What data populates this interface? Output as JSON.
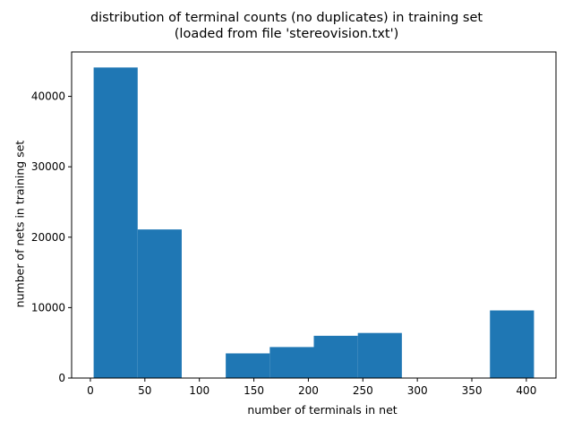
{
  "chart_data": {
    "type": "bar",
    "title_lines": [
      "distribution of terminal counts (no duplicates) in training set",
      "(loaded from file 'stereovision.txt')"
    ],
    "xlabel": "number of terminals in net",
    "ylabel": "number of nets in training set",
    "bins": [
      {
        "x0": 3,
        "x1": 43.4,
        "value": 44100
      },
      {
        "x0": 43.4,
        "x1": 83.8,
        "value": 21100
      },
      {
        "x0": 83.8,
        "x1": 124.2,
        "value": 0
      },
      {
        "x0": 124.2,
        "x1": 164.6,
        "value": 3500
      },
      {
        "x0": 164.6,
        "x1": 205.0,
        "value": 4400
      },
      {
        "x0": 205.0,
        "x1": 245.4,
        "value": 6000
      },
      {
        "x0": 245.4,
        "x1": 285.8,
        "value": 6400
      },
      {
        "x0": 285.8,
        "x1": 326.2,
        "value": 0
      },
      {
        "x0": 326.2,
        "x1": 366.6,
        "value": 0
      },
      {
        "x0": 366.6,
        "x1": 407.0,
        "value": 9600
      }
    ],
    "xticks": [
      0,
      50,
      100,
      150,
      200,
      250,
      300,
      350,
      400
    ],
    "yticks": [
      0,
      10000,
      20000,
      30000,
      40000
    ],
    "xlim": [
      -17.2,
      427.2
    ],
    "ylim": [
      0,
      46305
    ],
    "bar_color": "#1f77b4",
    "grid": false,
    "legend": "none"
  }
}
